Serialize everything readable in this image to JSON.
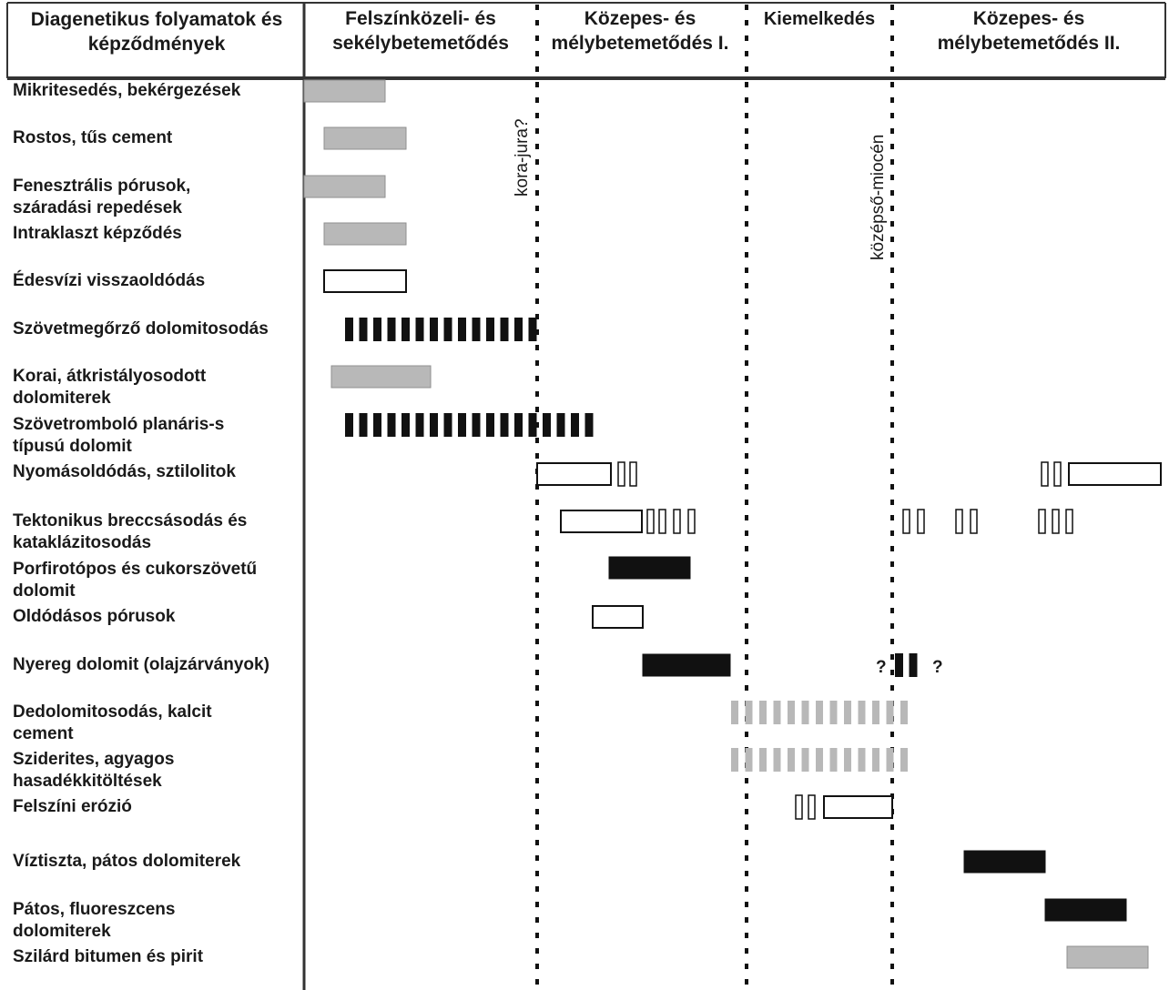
{
  "chart_data": {
    "type": "table",
    "header": {
      "process_column": [
        "Diagenetikus folyamatok és",
        "képződmények"
      ],
      "stages": [
        {
          "lines": [
            "Felszínközeli- és",
            "sekélybetemetődés"
          ]
        },
        {
          "lines": [
            "Közepes- és",
            "mélybetemetődés I."
          ]
        },
        {
          "lines": [
            "Kiemelkedés"
          ]
        },
        {
          "lines": [
            "Közepes- és",
            "mélybetemetődés II."
          ]
        }
      ]
    },
    "boundary_labels": [
      "kora-jura?",
      "középső-miocén"
    ],
    "question_mark": "?",
    "legend_styles": {
      "gray": "#b8b8b8",
      "black": "#111111",
      "open": "#ffffff"
    },
    "processes": [
      {
        "label": [
          "Mikritesedés, bekérgezések"
        ]
      },
      {
        "label": [
          "Rostos, tűs cement"
        ]
      },
      {
        "label": [
          "Fenesztrális pórusok,",
          "száradási repedések"
        ]
      },
      {
        "label": [
          "Intraklaszt képződés"
        ]
      },
      {
        "label": [
          "Édesvízi visszaoldódás"
        ]
      },
      {
        "label": [
          "Szövetmegőrző dolomitosodás"
        ]
      },
      {
        "label": [
          "Korai, átkristályosodott",
          "dolomiterek"
        ]
      },
      {
        "label": [
          "Szövetromboló planáris-s",
          "típusú dolomit"
        ]
      },
      {
        "label": [
          "Nyomásoldódás, sztilolitok"
        ]
      },
      {
        "label": [
          "Tektonikus breccsásodás és",
          "kataklázitosodás"
        ]
      },
      {
        "label": [
          "Porfirotópos és cukorszövetű",
          "dolomit"
        ]
      },
      {
        "label": [
          "Oldódásos pórusok"
        ]
      },
      {
        "label": [
          "Nyereg dolomit (olajzárványok)"
        ]
      },
      {
        "label": [
          "Dedolomitosodás, kalcit",
          "cement"
        ]
      },
      {
        "label": [
          "Sziderites, agyagos",
          "hasadékkitöltések"
        ]
      },
      {
        "label": [
          "Felszíni erózió"
        ]
      },
      {
        "label": [
          "Víztiszta, pátos dolomiterek"
        ]
      },
      {
        "label": [
          "Pátos, fluoreszcens",
          "dolomiterek"
        ]
      },
      {
        "label": [
          "Szilárd bitumen és pirit"
        ]
      }
    ]
  }
}
